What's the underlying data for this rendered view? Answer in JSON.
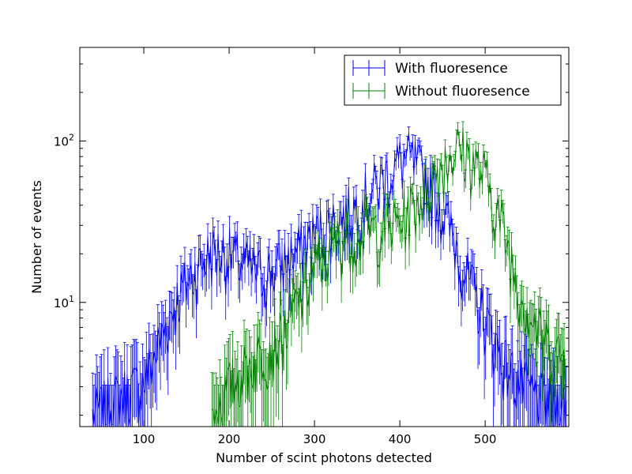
{
  "chart_data": {
    "type": "line",
    "xlabel": "Number of scint photons detected",
    "ylabel": "Number of events",
    "xlim": [
      25,
      598
    ],
    "ylim": [
      1.7,
      380
    ],
    "y_scale": "log",
    "x_ticks": [
      100,
      200,
      300,
      400,
      500
    ],
    "y_ticks": [
      {
        "value": 10,
        "base": "10",
        "exp": "1"
      },
      {
        "value": 100,
        "base": "10",
        "exp": "2"
      }
    ],
    "legend_position": "top-right",
    "error_bars": true,
    "series": [
      {
        "name": "With fluoresence",
        "color": "#0000ff",
        "points": [
          [
            40,
            2
          ],
          [
            60,
            2.4
          ],
          [
            80,
            2.8
          ],
          [
            100,
            3.2
          ],
          [
            120,
            6
          ],
          [
            140,
            11
          ],
          [
            160,
            16
          ],
          [
            180,
            21
          ],
          [
            200,
            20
          ],
          [
            220,
            17
          ],
          [
            240,
            15
          ],
          [
            260,
            17
          ],
          [
            280,
            21
          ],
          [
            300,
            26
          ],
          [
            320,
            31
          ],
          [
            340,
            36
          ],
          [
            360,
            45
          ],
          [
            380,
            58
          ],
          [
            400,
            75
          ],
          [
            410,
            78
          ],
          [
            420,
            70
          ],
          [
            440,
            48
          ],
          [
            460,
            28
          ],
          [
            480,
            14
          ],
          [
            500,
            8
          ],
          [
            520,
            4.5
          ],
          [
            540,
            3.2
          ],
          [
            560,
            2.6
          ],
          [
            580,
            2.4
          ],
          [
            595,
            2.3
          ]
        ]
      },
      {
        "name": "Without fluoresence",
        "color": "#008000",
        "points": [
          [
            180,
            2
          ],
          [
            200,
            3
          ],
          [
            220,
            4
          ],
          [
            240,
            5
          ],
          [
            260,
            6
          ],
          [
            280,
            10
          ],
          [
            300,
            16
          ],
          [
            320,
            22
          ],
          [
            340,
            27
          ],
          [
            360,
            28
          ],
          [
            380,
            29
          ],
          [
            400,
            32
          ],
          [
            420,
            42
          ],
          [
            440,
            62
          ],
          [
            460,
            85
          ],
          [
            470,
            90
          ],
          [
            480,
            82
          ],
          [
            500,
            60
          ],
          [
            520,
            30
          ],
          [
            540,
            12
          ],
          [
            560,
            7
          ],
          [
            580,
            5
          ],
          [
            595,
            4.6
          ]
        ]
      }
    ]
  }
}
